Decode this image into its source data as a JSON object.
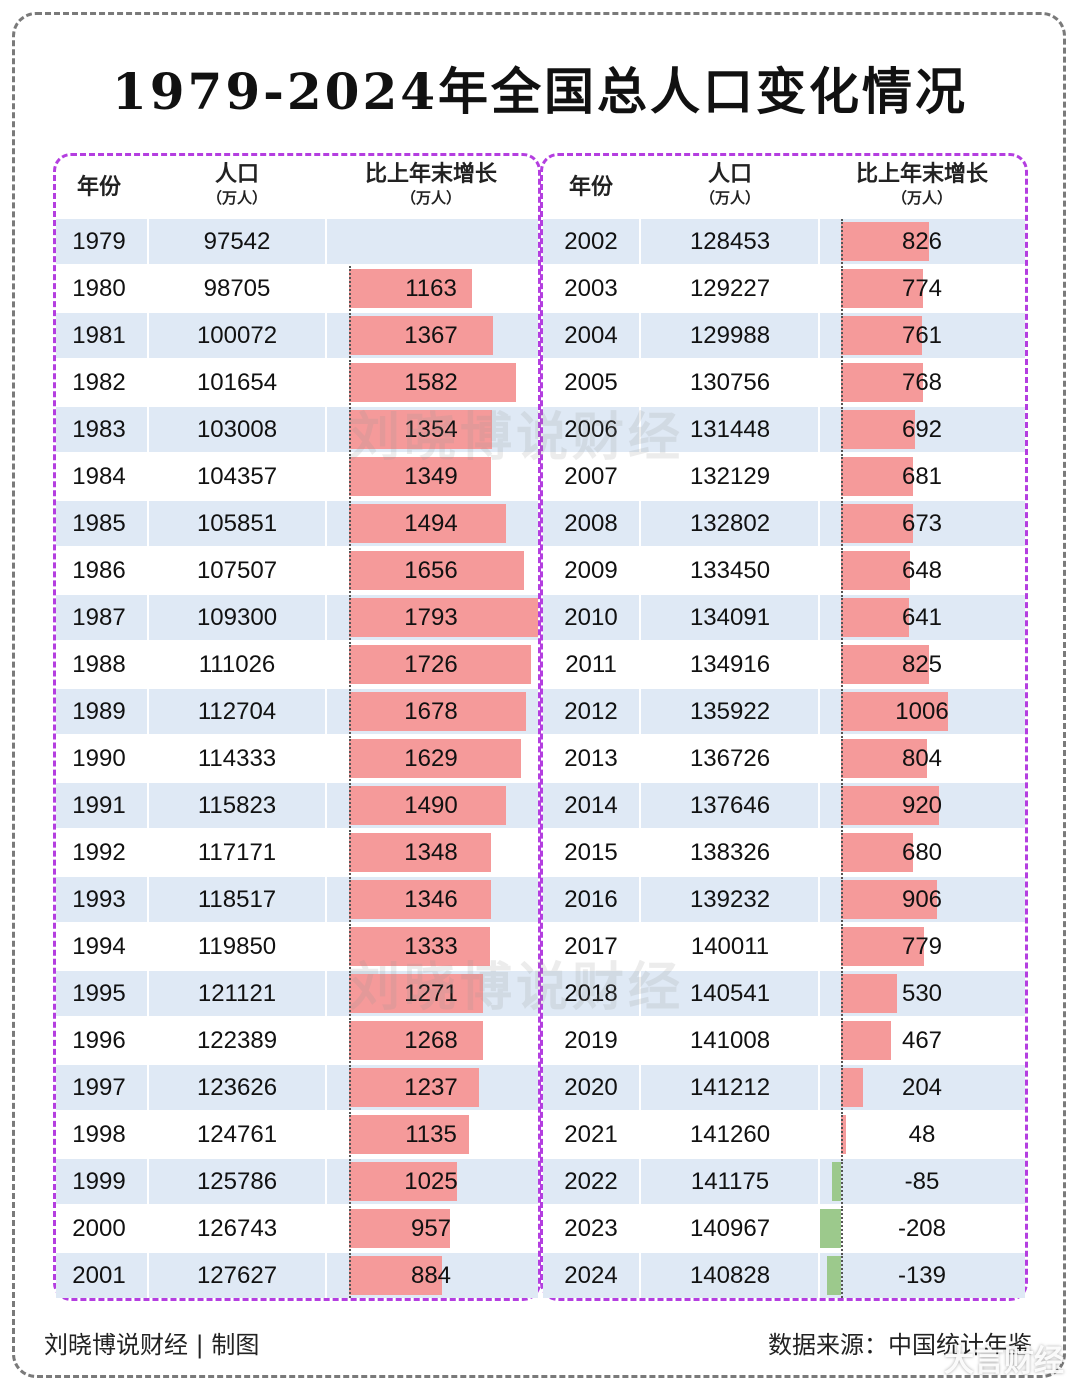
{
  "title": "1979-2024年全国总人口变化情况",
  "headers": {
    "year": "年份",
    "population": "人口",
    "population_unit": "（万人）",
    "growth": "比上年末增长",
    "growth_unit": "（万人）"
  },
  "watermark": "刘晓博说财经",
  "footer": {
    "left": "刘晓博说财经 | 制图",
    "right": "数据来源：中国统计年鉴"
  },
  "corner_mark": "大言财经",
  "colors": {
    "positive_bar": "#f59a9a",
    "negative_bar": "#9cc98c",
    "row_shade": "#dfe9f5",
    "panel_border": "#b43ee0"
  },
  "chart_data": {
    "type": "table",
    "columns": [
      "年份",
      "人口（万人）",
      "比上年末增长（万人）"
    ],
    "rows": [
      {
        "year": "1979",
        "population": "97542",
        "growth": ""
      },
      {
        "year": "1980",
        "population": "98705",
        "growth": "1163"
      },
      {
        "year": "1981",
        "population": "100072",
        "growth": "1367"
      },
      {
        "year": "1982",
        "population": "101654",
        "growth": "1582"
      },
      {
        "year": "1983",
        "population": "103008",
        "growth": "1354"
      },
      {
        "year": "1984",
        "population": "104357",
        "growth": "1349"
      },
      {
        "year": "1985",
        "population": "105851",
        "growth": "1494"
      },
      {
        "year": "1986",
        "population": "107507",
        "growth": "1656"
      },
      {
        "year": "1987",
        "population": "109300",
        "growth": "1793"
      },
      {
        "year": "1988",
        "population": "111026",
        "growth": "1726"
      },
      {
        "year": "1989",
        "population": "112704",
        "growth": "1678"
      },
      {
        "year": "1990",
        "population": "114333",
        "growth": "1629"
      },
      {
        "year": "1991",
        "population": "115823",
        "growth": "1490"
      },
      {
        "year": "1992",
        "population": "117171",
        "growth": "1348"
      },
      {
        "year": "1993",
        "population": "118517",
        "growth": "1346"
      },
      {
        "year": "1994",
        "population": "119850",
        "growth": "1333"
      },
      {
        "year": "1995",
        "population": "121121",
        "growth": "1271"
      },
      {
        "year": "1996",
        "population": "122389",
        "growth": "1268"
      },
      {
        "year": "1997",
        "population": "123626",
        "growth": "1237"
      },
      {
        "year": "1998",
        "population": "124761",
        "growth": "1135"
      },
      {
        "year": "1999",
        "population": "125786",
        "growth": "1025"
      },
      {
        "year": "2000",
        "population": "126743",
        "growth": "957"
      },
      {
        "year": "2001",
        "population": "127627",
        "growth": "884"
      },
      {
        "year": "2002",
        "population": "128453",
        "growth": "826"
      },
      {
        "year": "2003",
        "population": "129227",
        "growth": "774"
      },
      {
        "year": "2004",
        "population": "129988",
        "growth": "761"
      },
      {
        "year": "2005",
        "population": "130756",
        "growth": "768"
      },
      {
        "year": "2006",
        "population": "131448",
        "growth": "692"
      },
      {
        "year": "2007",
        "population": "132129",
        "growth": "681"
      },
      {
        "year": "2008",
        "population": "132802",
        "growth": "673"
      },
      {
        "year": "2009",
        "population": "133450",
        "growth": "648"
      },
      {
        "year": "2010",
        "population": "134091",
        "growth": "641"
      },
      {
        "year": "2011",
        "population": "134916",
        "growth": "825"
      },
      {
        "year": "2012",
        "population": "135922",
        "growth": "1006"
      },
      {
        "year": "2013",
        "population": "136726",
        "growth": "804"
      },
      {
        "year": "2014",
        "population": "137646",
        "growth": "920"
      },
      {
        "year": "2015",
        "population": "138326",
        "growth": "680"
      },
      {
        "year": "2016",
        "population": "139232",
        "growth": "906"
      },
      {
        "year": "2017",
        "population": "140011",
        "growth": "779"
      },
      {
        "year": "2018",
        "population": "140541",
        "growth": "530"
      },
      {
        "year": "2019",
        "population": "141008",
        "growth": "467"
      },
      {
        "year": "2020",
        "population": "141212",
        "growth": "204"
      },
      {
        "year": "2021",
        "population": "141260",
        "growth": "48"
      },
      {
        "year": "2022",
        "population": "141175",
        "growth": "-85"
      },
      {
        "year": "2023",
        "population": "140967",
        "growth": "-208"
      },
      {
        "year": "2024",
        "population": "140828",
        "growth": "-139"
      }
    ]
  }
}
